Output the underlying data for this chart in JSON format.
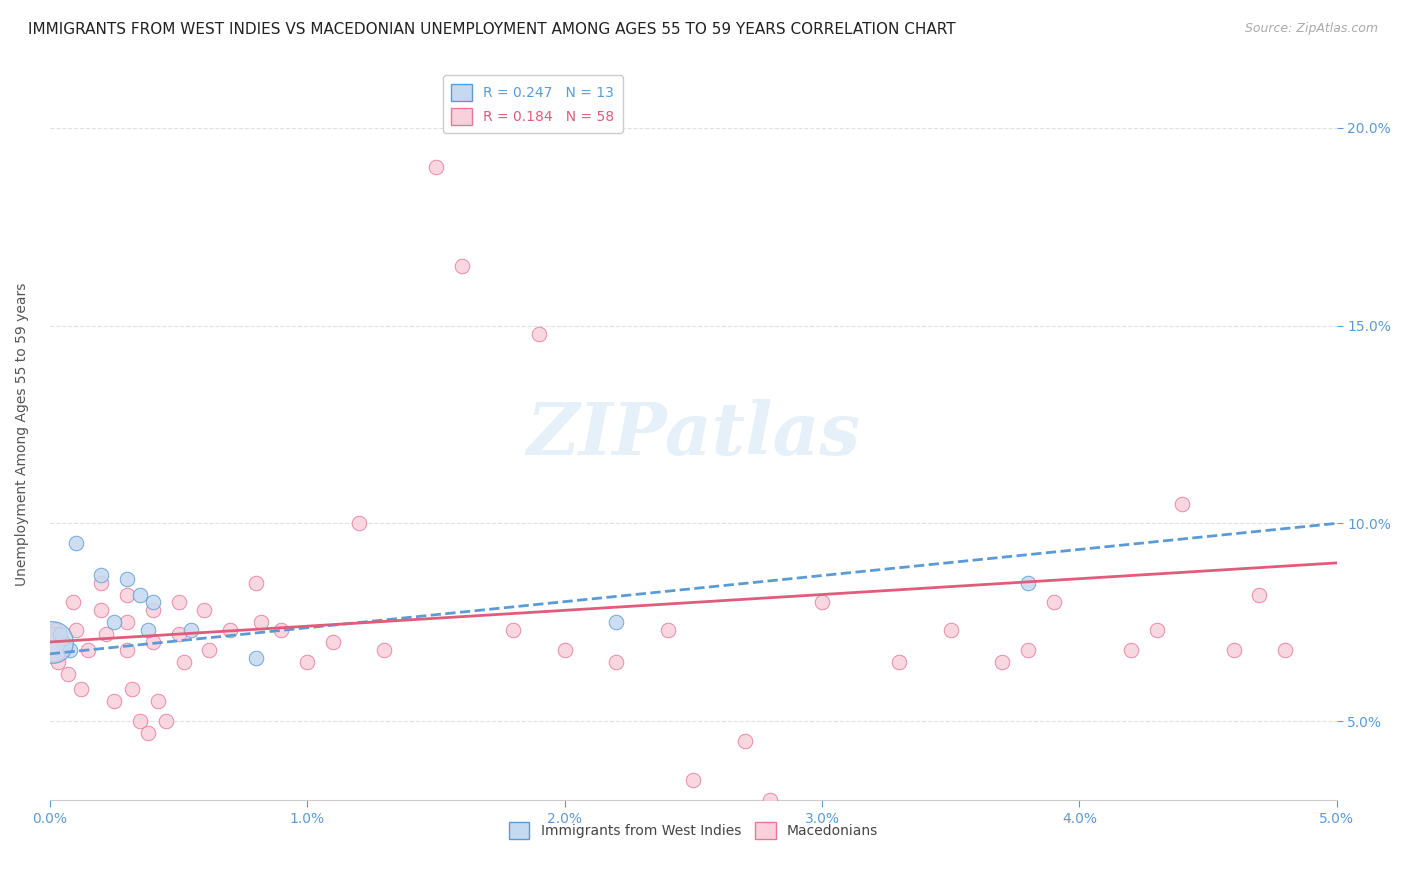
{
  "title": "IMMIGRANTS FROM WEST INDIES VS MACEDONIAN UNEMPLOYMENT AMONG AGES 55 TO 59 YEARS CORRELATION CHART",
  "source": "Source: ZipAtlas.com",
  "xlabel": "",
  "ylabel": "Unemployment Among Ages 55 to 59 years",
  "xlim": [
    0.0,
    0.05
  ],
  "ylim": [
    0.03,
    0.215
  ],
  "xticks": [
    0.0,
    0.01,
    0.02,
    0.03,
    0.04,
    0.05
  ],
  "yticks": [
    0.05,
    0.1,
    0.15,
    0.2
  ],
  "ytick_labels": [
    "5.0%",
    "10.0%",
    "15.0%",
    "20.0%"
  ],
  "xtick_labels": [
    "0.0%",
    "1.0%",
    "2.0%",
    "3.0%",
    "4.0%",
    "5.0%"
  ],
  "legend_entries": [
    {
      "label": "R = 0.247   N = 13",
      "color": "#c5d9f0",
      "line_color": "#5b9bd5"
    },
    {
      "label": "R = 0.184   N = 58",
      "color": "#f4b8c8",
      "line_color": "#e05c7a"
    }
  ],
  "watermark": "ZIPatlas",
  "background_color": "#ffffff",
  "grid_color": "#e0e0e0",
  "blue_scatter": [
    [
      0.0004,
      0.072
    ],
    [
      0.0008,
      0.068
    ],
    [
      0.001,
      0.095
    ],
    [
      0.002,
      0.087
    ],
    [
      0.0025,
      0.075
    ],
    [
      0.003,
      0.086
    ],
    [
      0.0035,
      0.082
    ],
    [
      0.0038,
      0.073
    ],
    [
      0.004,
      0.08
    ],
    [
      0.0055,
      0.073
    ],
    [
      0.008,
      0.066
    ],
    [
      0.022,
      0.075
    ],
    [
      0.038,
      0.085
    ]
  ],
  "blue_large_dot": [
    0.0001,
    0.07
  ],
  "pink_scatter": [
    [
      0.0002,
      0.073
    ],
    [
      0.0003,
      0.065
    ],
    [
      0.0005,
      0.07
    ],
    [
      0.0007,
      0.062
    ],
    [
      0.0009,
      0.08
    ],
    [
      0.001,
      0.073
    ],
    [
      0.0012,
      0.058
    ],
    [
      0.0015,
      0.068
    ],
    [
      0.002,
      0.085
    ],
    [
      0.002,
      0.078
    ],
    [
      0.0022,
      0.072
    ],
    [
      0.0025,
      0.055
    ],
    [
      0.003,
      0.082
    ],
    [
      0.003,
      0.075
    ],
    [
      0.003,
      0.068
    ],
    [
      0.0032,
      0.058
    ],
    [
      0.0035,
      0.05
    ],
    [
      0.0038,
      0.047
    ],
    [
      0.004,
      0.078
    ],
    [
      0.004,
      0.07
    ],
    [
      0.0042,
      0.055
    ],
    [
      0.0045,
      0.05
    ],
    [
      0.005,
      0.08
    ],
    [
      0.005,
      0.072
    ],
    [
      0.0052,
      0.065
    ],
    [
      0.006,
      0.078
    ],
    [
      0.0062,
      0.068
    ],
    [
      0.007,
      0.073
    ],
    [
      0.008,
      0.085
    ],
    [
      0.0082,
      0.075
    ],
    [
      0.009,
      0.073
    ],
    [
      0.01,
      0.065
    ],
    [
      0.011,
      0.07
    ],
    [
      0.012,
      0.1
    ],
    [
      0.013,
      0.068
    ],
    [
      0.015,
      0.19
    ],
    [
      0.016,
      0.165
    ],
    [
      0.018,
      0.073
    ],
    [
      0.019,
      0.148
    ],
    [
      0.02,
      0.068
    ],
    [
      0.022,
      0.065
    ],
    [
      0.024,
      0.073
    ],
    [
      0.025,
      0.035
    ],
    [
      0.027,
      0.045
    ],
    [
      0.028,
      0.03
    ],
    [
      0.03,
      0.08
    ],
    [
      0.033,
      0.065
    ],
    [
      0.035,
      0.073
    ],
    [
      0.037,
      0.065
    ],
    [
      0.038,
      0.068
    ],
    [
      0.039,
      0.08
    ],
    [
      0.042,
      0.068
    ],
    [
      0.043,
      0.073
    ],
    [
      0.044,
      0.105
    ],
    [
      0.046,
      0.068
    ],
    [
      0.047,
      0.082
    ],
    [
      0.048,
      0.068
    ]
  ],
  "blue_line": [
    [
      0.0,
      0.067
    ],
    [
      0.05,
      0.1
    ]
  ],
  "pink_line": [
    [
      0.0,
      0.07
    ],
    [
      0.05,
      0.09
    ]
  ],
  "title_fontsize": 11,
  "axis_label_fontsize": 10,
  "tick_fontsize": 10,
  "legend_fontsize": 10,
  "source_fontsize": 9
}
